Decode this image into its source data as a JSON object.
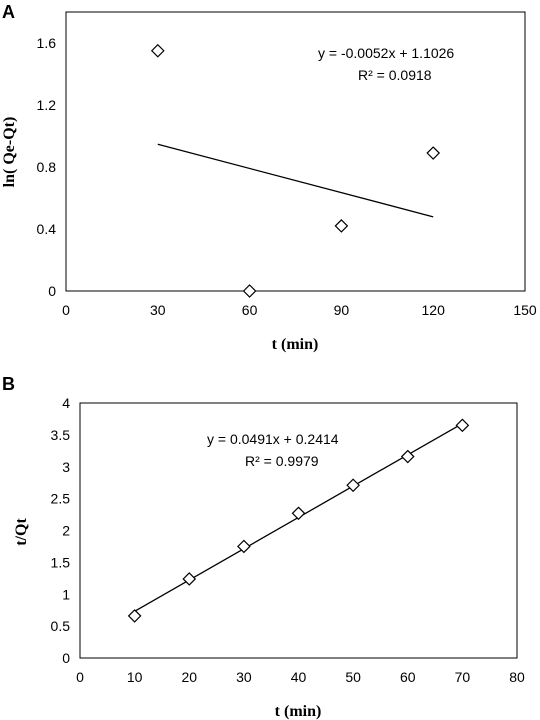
{
  "chart_data": [
    {
      "type": "scatter",
      "panel": "A",
      "xlabel": "t (min)",
      "ylabel": "ln( Qe-Qt)",
      "xlim": [
        0,
        150
      ],
      "ylim": [
        0,
        1.8
      ],
      "xticks": [
        0,
        30,
        60,
        90,
        120,
        150
      ],
      "yticks": [
        0,
        0.4,
        0.8,
        1.2,
        1.6
      ],
      "ytick_labels": [
        "0",
        "0.4",
        "0.8",
        "1.2",
        "1.6"
      ],
      "series": [
        {
          "x": [
            30,
            60,
            90,
            120
          ],
          "y": [
            1.55,
            0.0,
            0.42,
            0.89
          ]
        }
      ],
      "trendline": {
        "slope": -0.0052,
        "intercept": 1.1026,
        "x_range": [
          30,
          120
        ]
      },
      "equation": "y = -0.0052x + 1.1026",
      "r_squared": "R² = 0.0918",
      "grid": false
    },
    {
      "type": "scatter",
      "panel": "B",
      "xlabel": "t (min)",
      "ylabel": "t/Qt",
      "xlim": [
        0,
        80
      ],
      "ylim": [
        0,
        4
      ],
      "xticks": [
        0,
        10,
        20,
        30,
        40,
        50,
        60,
        70,
        80
      ],
      "yticks": [
        0,
        0.5,
        1,
        1.5,
        2,
        2.5,
        3,
        3.5,
        4
      ],
      "ytick_labels": [
        "0",
        "0.5",
        "1",
        "1.5",
        "2",
        "2.5",
        "3",
        "3.5",
        "4"
      ],
      "series": [
        {
          "x": [
            10,
            20,
            30,
            40,
            50,
            60,
            70
          ],
          "y": [
            0.66,
            1.24,
            1.75,
            2.27,
            2.71,
            3.16,
            3.65
          ]
        }
      ],
      "trendline": {
        "slope": 0.0491,
        "intercept": 0.2414,
        "x_range": [
          10,
          70
        ]
      },
      "equation": "y = 0.0491x + 0.2414",
      "r_squared": "R² = 0.9979",
      "grid": false
    }
  ]
}
